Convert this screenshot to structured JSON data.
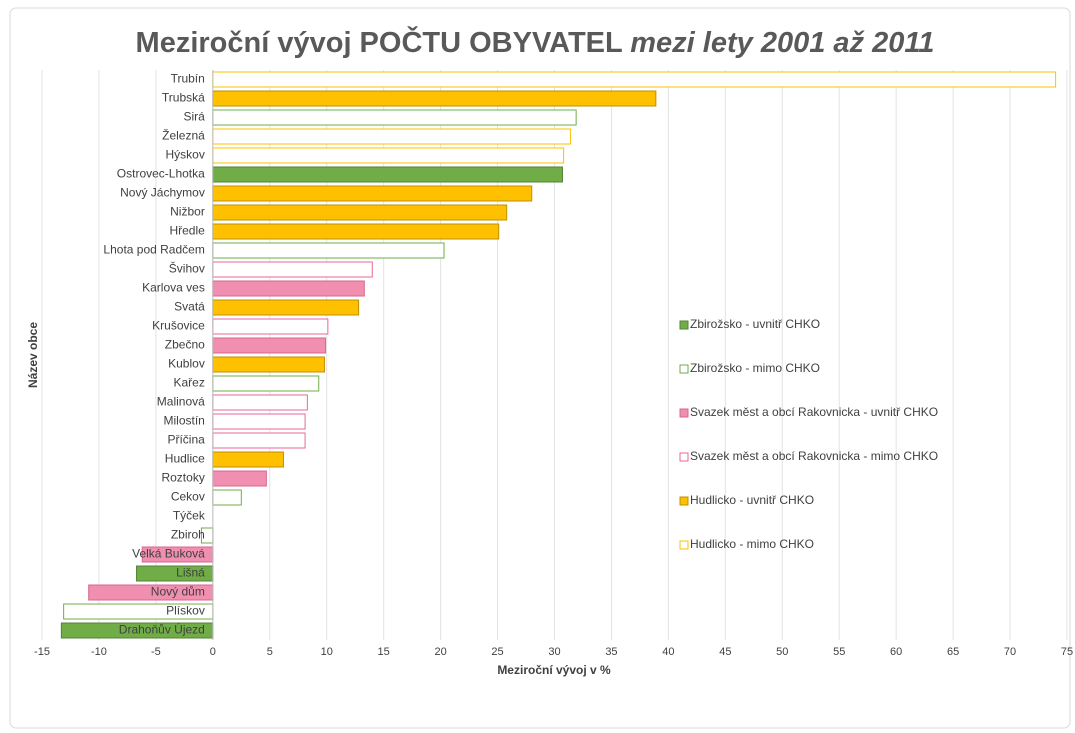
{
  "chart_data": {
    "type": "hbar",
    "title": "Meziroční vývoj POČTU OBYVATEL",
    "title_italic": "mezi lety 2001 až 2011",
    "x_label": "Meziroční vývoj v %",
    "y_label": "Název obce",
    "categories": [
      "Trubín",
      "Trubská",
      "Sirá",
      "Železná",
      "Hýskov",
      "Ostrovec-Lhotka",
      "Nový Jáchymov",
      "Nižbor",
      "Hředle",
      "Lhota pod Radčem",
      "Švihov",
      "Karlova ves",
      "Svatá",
      "Krušovice",
      "Zbečno",
      "Kublov",
      "Kařez",
      "Malinová",
      "Milostín",
      "Příčina",
      "Hudlice",
      "Roztoky",
      "Cekov",
      "Týček",
      "Zbiroh",
      "Velká Buková",
      "Lišná",
      "Nový dům",
      "Plískov",
      "Drahoňův Újezd"
    ],
    "series": [
      {
        "name": "Zbirožsko - uvnitř CHKO",
        "color": "#70ad47",
        "stroke": "#548235",
        "filled": true,
        "values": [
          null,
          null,
          null,
          null,
          null,
          30.7,
          null,
          null,
          null,
          null,
          null,
          null,
          null,
          null,
          null,
          null,
          null,
          null,
          null,
          null,
          null,
          null,
          null,
          null,
          null,
          null,
          -6.7,
          null,
          null,
          -13.3
        ]
      },
      {
        "name": "Zbirožsko - mimo CHKO",
        "color": "#70ad47",
        "stroke": "#70ad47",
        "filled": false,
        "values": [
          null,
          null,
          31.9,
          null,
          null,
          null,
          null,
          null,
          null,
          20.3,
          null,
          null,
          null,
          null,
          null,
          null,
          9.3,
          null,
          null,
          null,
          null,
          null,
          2.5,
          null,
          -1,
          null,
          null,
          null,
          -13.1,
          null
        ]
      },
      {
        "name": "Svazek měst a obcí Rakovnicka - uvnitř CHKO",
        "color": "#f08fb0",
        "stroke": "#d9668f",
        "filled": true,
        "values": [
          null,
          null,
          null,
          null,
          null,
          null,
          null,
          null,
          null,
          null,
          null,
          13.3,
          null,
          null,
          9.9,
          null,
          null,
          null,
          null,
          null,
          null,
          4.7,
          null,
          null,
          null,
          -6.2,
          null,
          -10.9,
          null,
          null
        ]
      },
      {
        "name": "Svazek měst a obcí Rakovnicka - mimo CHKO",
        "color": "#e8679a",
        "stroke": "#e8679a",
        "filled": false,
        "values": [
          null,
          null,
          null,
          null,
          null,
          null,
          null,
          null,
          null,
          null,
          14,
          null,
          null,
          10.1,
          null,
          null,
          null,
          8.3,
          8.1,
          8.1,
          null,
          null,
          null,
          null,
          null,
          null,
          null,
          null,
          null,
          null
        ]
      },
      {
        "name": "Hudlicko - uvnitř CHKO",
        "color": "#ffc000",
        "stroke": "#bf9000",
        "filled": true,
        "values": [
          null,
          38.9,
          null,
          null,
          null,
          null,
          28,
          25.8,
          25.1,
          null,
          null,
          null,
          12.8,
          null,
          null,
          9.8,
          null,
          null,
          null,
          null,
          6.2,
          null,
          null,
          null,
          null,
          null,
          null,
          null,
          null,
          null
        ]
      },
      {
        "name": "Hudlicko - mimo CHKO",
        "color": "#ffc000",
        "stroke": "#ffc000",
        "filled": false,
        "values": [
          74,
          null,
          null,
          31.4,
          30.8,
          null,
          null,
          null,
          null,
          null,
          null,
          null,
          null,
          null,
          null,
          null,
          null,
          null,
          null,
          null,
          null,
          null,
          null,
          0,
          null,
          null,
          null,
          null,
          null,
          null
        ]
      }
    ],
    "xlim": [
      -15,
      75
    ],
    "xticks": [
      -15,
      -10,
      -5,
      0,
      5,
      10,
      15,
      20,
      25,
      30,
      35,
      40,
      45,
      50,
      55,
      60,
      65,
      70,
      75
    ],
    "grid": true,
    "legend": "right"
  }
}
